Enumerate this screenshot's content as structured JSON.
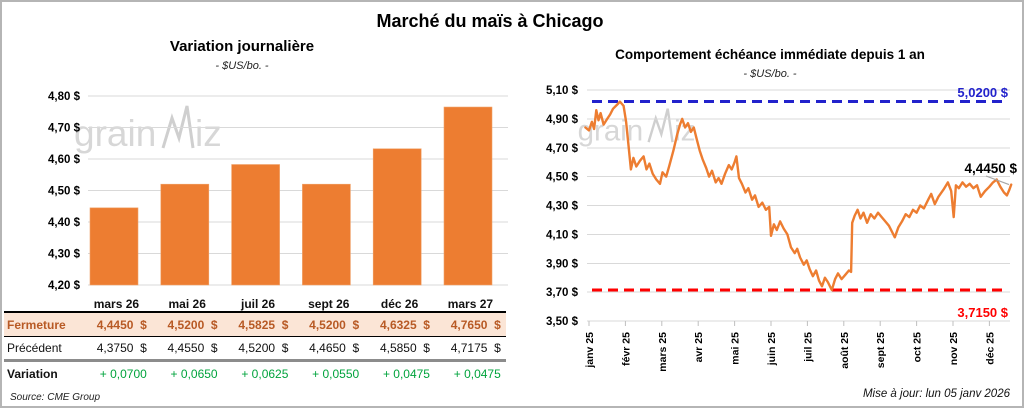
{
  "header": {
    "title": "Marché du maïs à Chicago"
  },
  "watermark": {
    "prefix": "grain",
    "suffix": "iz",
    "zigzag_icon": "line-chart-w",
    "color": "#d7d7d7"
  },
  "colors": {
    "accent_orange": "#ED7D31",
    "ref_blue": "#2222CC",
    "ref_red": "#FF0000",
    "variation_green": "#00A33C",
    "close_row_bg": "#FBE5D6",
    "close_row_text": "#B85A25",
    "gridline": "#D9D9D9"
  },
  "chart_data": [
    {
      "type": "bar",
      "title": "Variation journalière",
      "subtitle": "- $US/bo. -",
      "categories": [
        "mars 26",
        "mai 26",
        "juil 26",
        "sept 26",
        "déc 26",
        "mars 27"
      ],
      "values": [
        4.445,
        4.52,
        4.5825,
        4.52,
        4.6325,
        4.765
      ],
      "ylabel": "",
      "xlabel": "",
      "ylim": [
        4.2,
        4.8
      ],
      "ytick_step": 0.1,
      "ytick_suffix": " $",
      "grid": true,
      "bar_color": "#ED7D31"
    },
    {
      "type": "line",
      "title": "Comportement échéance immédiate depuis 1 an",
      "subtitle": "- $US/bo. -",
      "x_categories": [
        "janv 25",
        "févr 25",
        "mars 25",
        "avr 25",
        "mai 25",
        "juin 25",
        "juil 25",
        "août 25",
        "sept 25",
        "oct 25",
        "nov 25",
        "déc 25"
      ],
      "ylim": [
        3.5,
        5.1
      ],
      "ytick_step": 0.2,
      "ytick_suffix": " $",
      "grid": true,
      "line_color": "#ED7D31",
      "ref_lines": [
        {
          "value": 5.02,
          "label": "5,0200 $",
          "color": "#2222CC",
          "label_side": "above"
        },
        {
          "value": 3.715,
          "label": "3,7150 $",
          "color": "#FF0000",
          "label_side": "below"
        }
      ],
      "last_point_label": {
        "value": 4.445,
        "label": "4,4450 $",
        "color": "#000000"
      },
      "series": [
        {
          "name": "échéance immédiate",
          "points": [
            [
              -0.1,
              4.84
            ],
            [
              0.0,
              4.82
            ],
            [
              0.08,
              4.88
            ],
            [
              0.14,
              4.83
            ],
            [
              0.2,
              4.96
            ],
            [
              0.26,
              4.89
            ],
            [
              0.32,
              4.94
            ],
            [
              0.4,
              4.86
            ],
            [
              0.5,
              4.9
            ],
            [
              0.58,
              4.93
            ],
            [
              0.66,
              4.97
            ],
            [
              0.78,
              5.0
            ],
            [
              0.85,
              5.02
            ],
            [
              0.95,
              4.99
            ],
            [
              1.02,
              4.88
            ],
            [
              1.08,
              4.73
            ],
            [
              1.15,
              4.55
            ],
            [
              1.22,
              4.63
            ],
            [
              1.3,
              4.57
            ],
            [
              1.4,
              4.61
            ],
            [
              1.5,
              4.64
            ],
            [
              1.58,
              4.55
            ],
            [
              1.66,
              4.59
            ],
            [
              1.75,
              4.52
            ],
            [
              1.85,
              4.48
            ],
            [
              1.95,
              4.45
            ],
            [
              2.02,
              4.53
            ],
            [
              2.12,
              4.5
            ],
            [
              2.2,
              4.57
            ],
            [
              2.32,
              4.68
            ],
            [
              2.42,
              4.79
            ],
            [
              2.5,
              4.86
            ],
            [
              2.56,
              4.9
            ],
            [
              2.64,
              4.84
            ],
            [
              2.72,
              4.87
            ],
            [
              2.8,
              4.81
            ],
            [
              2.88,
              4.84
            ],
            [
              2.96,
              4.76
            ],
            [
              3.04,
              4.68
            ],
            [
              3.12,
              4.62
            ],
            [
              3.22,
              4.56
            ],
            [
              3.3,
              4.5
            ],
            [
              3.38,
              4.54
            ],
            [
              3.48,
              4.46
            ],
            [
              3.56,
              4.49
            ],
            [
              3.64,
              4.45
            ],
            [
              3.74,
              4.52
            ],
            [
              3.84,
              4.58
            ],
            [
              3.92,
              4.55
            ],
            [
              4.0,
              4.6
            ],
            [
              4.05,
              4.64
            ],
            [
              4.12,
              4.49
            ],
            [
              4.2,
              4.45
            ],
            [
              4.3,
              4.39
            ],
            [
              4.38,
              4.42
            ],
            [
              4.48,
              4.34
            ],
            [
              4.56,
              4.37
            ],
            [
              4.66,
              4.29
            ],
            [
              4.76,
              4.32
            ],
            [
              4.86,
              4.27
            ],
            [
              4.95,
              4.29
            ],
            [
              5.0,
              4.09
            ],
            [
              5.08,
              4.17
            ],
            [
              5.16,
              4.13
            ],
            [
              5.25,
              4.19
            ],
            [
              5.35,
              4.14
            ],
            [
              5.45,
              4.1
            ],
            [
              5.55,
              4.01
            ],
            [
              5.65,
              3.97
            ],
            [
              5.72,
              4.0
            ],
            [
              5.8,
              3.94
            ],
            [
              5.9,
              3.89
            ],
            [
              5.98,
              3.92
            ],
            [
              6.06,
              3.86
            ],
            [
              6.15,
              3.81
            ],
            [
              6.24,
              3.85
            ],
            [
              6.32,
              3.78
            ],
            [
              6.4,
              3.74
            ],
            [
              6.48,
              3.8
            ],
            [
              6.56,
              3.77
            ],
            [
              6.67,
              3.715
            ],
            [
              6.76,
              3.79
            ],
            [
              6.84,
              3.83
            ],
            [
              6.94,
              3.79
            ],
            [
              7.04,
              3.82
            ],
            [
              7.14,
              3.85
            ],
            [
              7.2,
              3.84
            ],
            [
              7.23,
              4.18
            ],
            [
              7.3,
              4.23
            ],
            [
              7.38,
              4.27
            ],
            [
              7.46,
              4.21
            ],
            [
              7.54,
              4.25
            ],
            [
              7.64,
              4.18
            ],
            [
              7.74,
              4.24
            ],
            [
              7.84,
              4.21
            ],
            [
              7.94,
              4.25
            ],
            [
              8.04,
              4.22
            ],
            [
              8.14,
              4.19
            ],
            [
              8.24,
              4.16
            ],
            [
              8.4,
              4.08
            ],
            [
              8.5,
              4.15
            ],
            [
              8.6,
              4.19
            ],
            [
              8.7,
              4.24
            ],
            [
              8.8,
              4.22
            ],
            [
              8.9,
              4.27
            ],
            [
              9.0,
              4.25
            ],
            [
              9.1,
              4.3
            ],
            [
              9.2,
              4.28
            ],
            [
              9.32,
              4.34
            ],
            [
              9.4,
              4.38
            ],
            [
              9.5,
              4.31
            ],
            [
              9.6,
              4.36
            ],
            [
              9.74,
              4.41
            ],
            [
              9.86,
              4.46
            ],
            [
              9.95,
              4.4
            ],
            [
              10.02,
              4.22
            ],
            [
              10.08,
              4.44
            ],
            [
              10.16,
              4.42
            ],
            [
              10.26,
              4.46
            ],
            [
              10.36,
              4.43
            ],
            [
              10.46,
              4.45
            ],
            [
              10.56,
              4.42
            ],
            [
              10.66,
              4.44
            ],
            [
              10.76,
              4.36
            ],
            [
              10.88,
              4.4
            ],
            [
              11.0,
              4.43
            ],
            [
              11.1,
              4.46
            ],
            [
              11.2,
              4.48
            ],
            [
              11.3,
              4.43
            ],
            [
              11.4,
              4.39
            ],
            [
              11.48,
              4.37
            ],
            [
              11.55,
              4.41
            ],
            [
              11.6,
              4.445
            ]
          ]
        }
      ]
    }
  ],
  "table": {
    "columns": [
      "mars 26",
      "mai 26",
      "juil 26",
      "sept 26",
      "déc 26",
      "mars 27"
    ],
    "rows": [
      {
        "label": "Fermeture",
        "style": "close",
        "values": [
          "4,4450  $",
          "4,5200  $",
          "4,5825  $",
          "4,5200  $",
          "4,6325  $",
          "4,7650  $"
        ]
      },
      {
        "label": "Précédent",
        "style": "prev",
        "values": [
          "4,3750  $",
          "4,4550  $",
          "4,5200  $",
          "4,4650  $",
          "4,5850  $",
          "4,7175  $"
        ]
      },
      {
        "label": "Variation",
        "style": "var",
        "values": [
          "+ 0,0700",
          "+ 0,0650",
          "+ 0,0625",
          "+ 0,0550",
          "+ 0,0475",
          "+ 0,0475"
        ]
      }
    ]
  },
  "footer": {
    "source": "Source: CME Group",
    "updated": "Mise à jour: lun 05 janv 2026"
  }
}
